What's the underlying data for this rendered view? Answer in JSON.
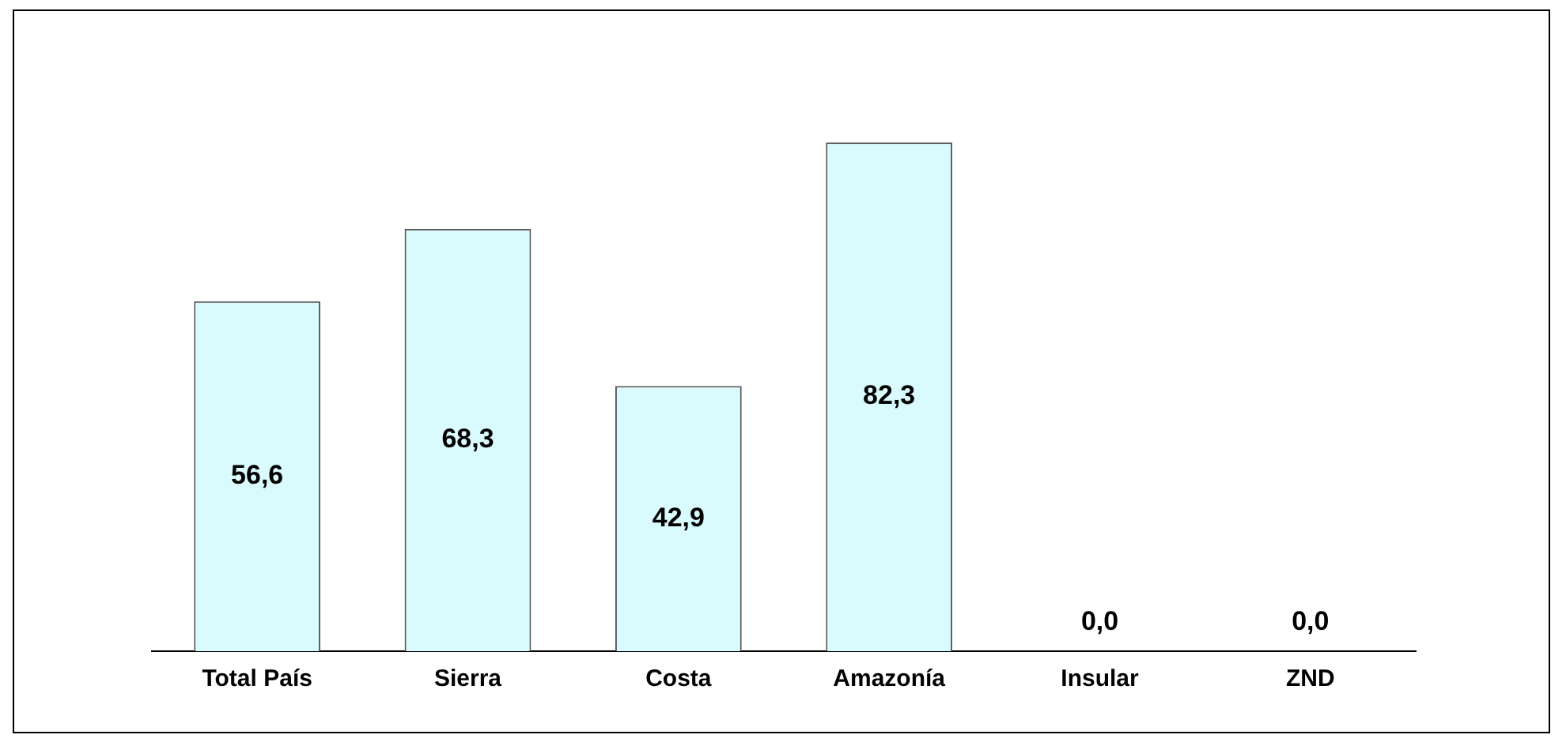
{
  "chart_data": {
    "type": "bar",
    "categories": [
      "Total País",
      "Sierra",
      "Costa",
      "Amazonía",
      "Insular",
      "ZND"
    ],
    "values": [
      56.6,
      68.3,
      42.9,
      82.3,
      0,
      0
    ],
    "value_labels": [
      "56,6",
      "68,3",
      "42,9",
      "82,3",
      "0,0",
      "0,0"
    ],
    "color": "#d9fbfd",
    "grid": false,
    "legend": false
  }
}
